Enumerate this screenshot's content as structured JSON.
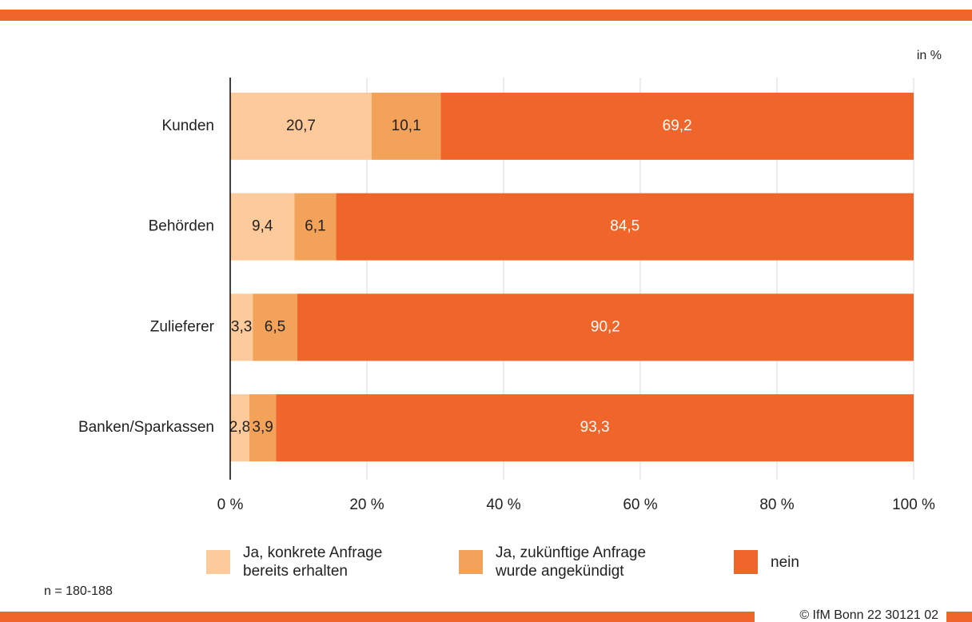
{
  "chart_data": {
    "type": "stacked_barh",
    "unit_label": "in %",
    "note": "n = 180-188",
    "source": "© IfM Bonn 22 30121 02",
    "categories": [
      "Kunden",
      "Behörden",
      "Zulieferer",
      "Banken/Sparkassen"
    ],
    "series": [
      {
        "name": "Ja, konkrete Anfrage bereits erhalten",
        "color": "#fdca9b",
        "label_color": "#222222",
        "values": [
          20.7,
          9.4,
          3.3,
          2.8
        ],
        "value_labels": [
          "20,7",
          "9,4",
          "3,3",
          "2,8"
        ]
      },
      {
        "name": "Ja, zukünftige Anfrage wurde angekündigt",
        "color": "#f3a259",
        "label_color": "#222222",
        "values": [
          10.1,
          6.1,
          6.5,
          3.9
        ],
        "value_labels": [
          "10,1",
          "6,1",
          "6,5",
          "3,9"
        ]
      },
      {
        "name": "nein",
        "color": "#f0652a",
        "label_color": "#ffffff",
        "values": [
          69.2,
          84.5,
          90.2,
          93.3
        ],
        "value_labels": [
          "69,2",
          "84,5",
          "90,2",
          "93,3"
        ]
      }
    ],
    "xlim": [
      0,
      100
    ],
    "xticks": [
      {
        "value": 0,
        "label": "0 %"
      },
      {
        "value": 20,
        "label": "20 %"
      },
      {
        "value": 40,
        "label": "40 %"
      },
      {
        "value": 60,
        "label": "60 %"
      },
      {
        "value": 80,
        "label": "80 %"
      },
      {
        "value": 100,
        "label": "100 %"
      }
    ],
    "grid": true
  }
}
